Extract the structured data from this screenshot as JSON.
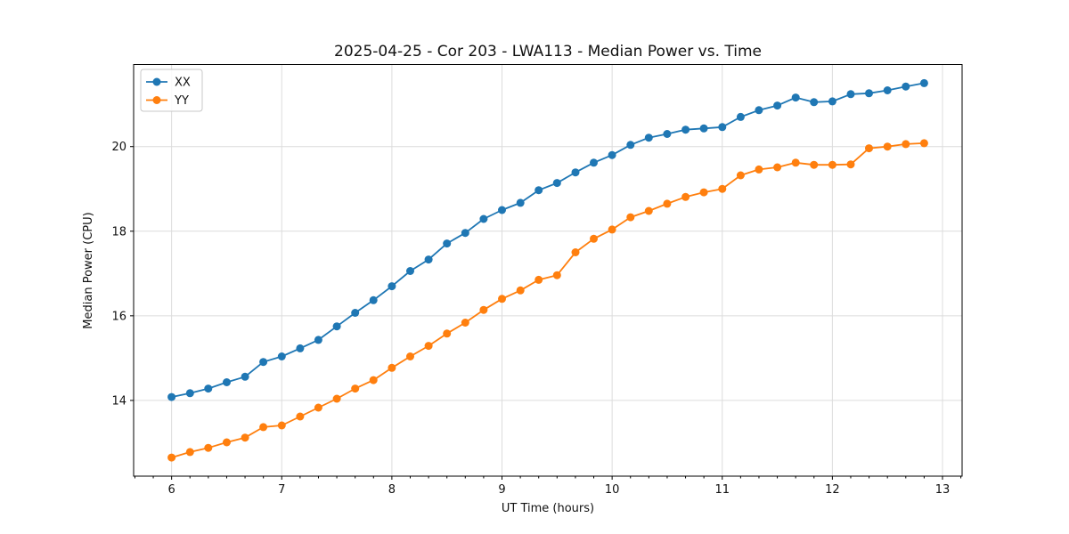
{
  "chart_data": {
    "type": "line",
    "title": "2025-04-25 - Cor 203 - LWA113 - Median Power vs. Time",
    "xlabel": "UT Time (hours)",
    "ylabel": "Median Power (CPU)",
    "xlim": [
      5.655,
      13.178
    ],
    "ylim": [
      12.21,
      21.94
    ],
    "x_ticks": [
      6,
      7,
      8,
      9,
      10,
      11,
      12,
      13
    ],
    "y_ticks": [
      14,
      16,
      18,
      20
    ],
    "x_minor_tick_step": 0.16667,
    "grid": true,
    "legend_position": "upper-left",
    "x": [
      6.0,
      6.167,
      6.333,
      6.5,
      6.667,
      6.833,
      7.0,
      7.167,
      7.333,
      7.5,
      7.667,
      7.833,
      8.0,
      8.167,
      8.333,
      8.5,
      8.667,
      8.833,
      9.0,
      9.167,
      9.333,
      9.5,
      9.667,
      9.833,
      10.0,
      10.167,
      10.333,
      10.5,
      10.667,
      10.833,
      11.0,
      11.167,
      11.333,
      11.5,
      11.667,
      11.833,
      12.0,
      12.167,
      12.333,
      12.5,
      12.667,
      12.833
    ],
    "series": [
      {
        "name": "XX",
        "color": "#1f77b4",
        "marker": "circle",
        "values": [
          14.08,
          14.17,
          14.28,
          14.43,
          14.56,
          14.91,
          15.04,
          15.23,
          15.43,
          15.75,
          16.07,
          16.37,
          16.7,
          17.06,
          17.33,
          17.71,
          17.96,
          18.29,
          18.5,
          18.67,
          18.97,
          19.14,
          19.39,
          19.62,
          19.8,
          20.04,
          20.21,
          20.3,
          20.4,
          20.43,
          20.46,
          20.7,
          20.86,
          20.97,
          21.16,
          21.05,
          21.07,
          21.24,
          21.26,
          21.33,
          21.42,
          21.5
        ]
      },
      {
        "name": "YY",
        "color": "#ff7f0e",
        "marker": "circle",
        "values": [
          12.65,
          12.78,
          12.88,
          13.01,
          13.12,
          13.37,
          13.41,
          13.62,
          13.83,
          14.04,
          14.28,
          14.48,
          14.77,
          15.04,
          15.29,
          15.58,
          15.84,
          16.14,
          16.4,
          16.6,
          16.85,
          16.96,
          17.5,
          17.82,
          18.04,
          18.33,
          18.48,
          18.65,
          18.81,
          18.92,
          19.0,
          19.32,
          19.46,
          19.51,
          19.62,
          19.57,
          19.57,
          19.58,
          19.96,
          20.0,
          20.06,
          20.08
        ]
      }
    ]
  },
  "style": {
    "grid_color": "#dcdcdc",
    "spine_color": "#000000",
    "text_color": "#111111",
    "series_colors": [
      "#1f77b4",
      "#ff7f0e"
    ]
  }
}
